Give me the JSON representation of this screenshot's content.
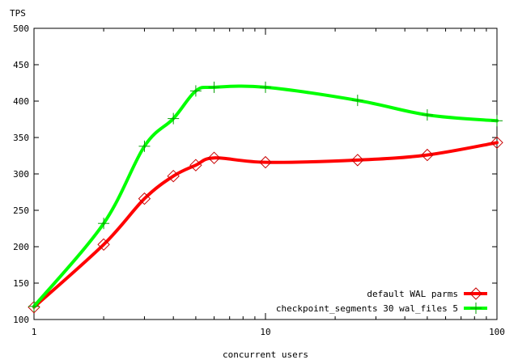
{
  "chart_data": {
    "type": "line",
    "title": "",
    "xlabel": "concurrent users",
    "ylabel": "TPS",
    "x_scale": "log",
    "xlim": [
      1,
      100
    ],
    "ylim": [
      100,
      500
    ],
    "x_ticks": [
      1,
      10,
      100
    ],
    "y_ticks": [
      100,
      150,
      200,
      250,
      300,
      350,
      400,
      450,
      500
    ],
    "grid": false,
    "legend_position": "bottom-right",
    "series": [
      {
        "name": "default WAL parms",
        "color": "#ff0000",
        "marker": "diamond",
        "points": [
          {
            "x": 1,
            "y": 117
          },
          {
            "x": 2,
            "y": 203
          },
          {
            "x": 3,
            "y": 266
          },
          {
            "x": 4,
            "y": 297
          },
          {
            "x": 5,
            "y": 312
          },
          {
            "x": 6,
            "y": 322
          },
          {
            "x": 10,
            "y": 316
          },
          {
            "x": 25,
            "y": 319
          },
          {
            "x": 50,
            "y": 326
          },
          {
            "x": 100,
            "y": 343
          }
        ]
      },
      {
        "name": "checkpoint_segments 30 wal_files 5",
        "color": "#00ff00",
        "marker": "plus",
        "points": [
          {
            "x": 1,
            "y": 118
          },
          {
            "x": 2,
            "y": 232
          },
          {
            "x": 3,
            "y": 338
          },
          {
            "x": 4,
            "y": 376
          },
          {
            "x": 5,
            "y": 414
          },
          {
            "x": 6,
            "y": 419
          },
          {
            "x": 10,
            "y": 419
          },
          {
            "x": 25,
            "y": 401
          },
          {
            "x": 50,
            "y": 381
          },
          {
            "x": 100,
            "y": 373
          }
        ]
      }
    ]
  }
}
